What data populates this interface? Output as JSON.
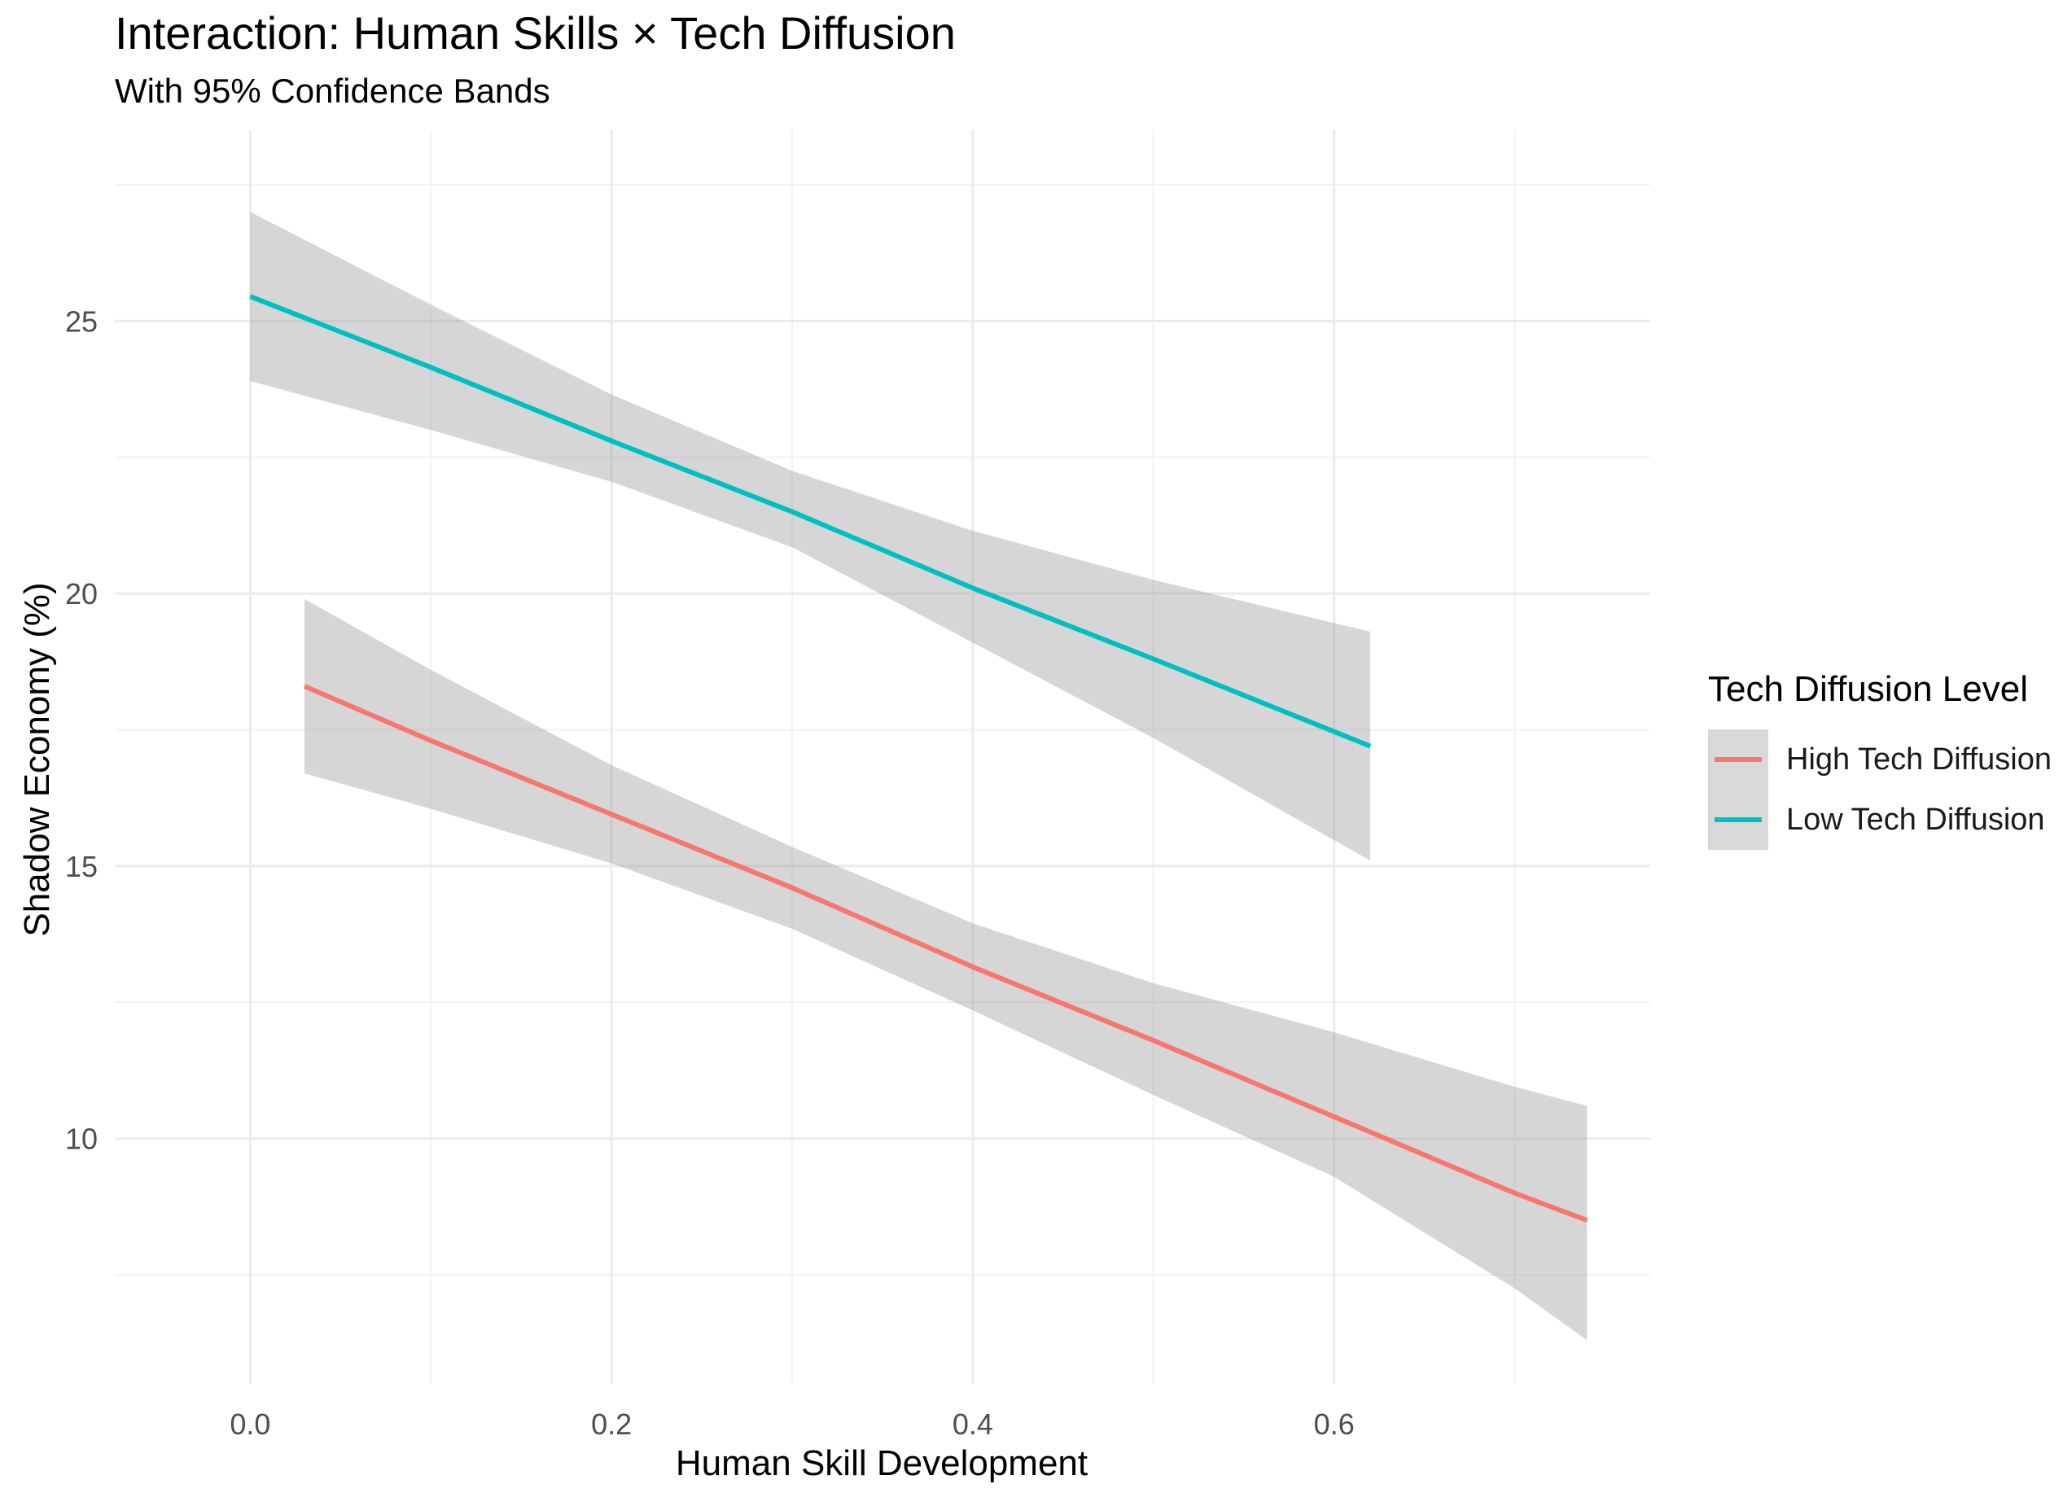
{
  "chart_data": {
    "type": "line",
    "title": "Interaction: Human Skills × Tech Diffusion",
    "subtitle": "With 95% Confidence Bands",
    "xlabel": "Human Skill Development",
    "ylabel": "Shadow Economy (%)",
    "xlim": [
      -0.075,
      0.775
    ],
    "ylim": [
      5.5,
      28.5
    ],
    "x_ticks": [
      0.0,
      0.2,
      0.4,
      0.6
    ],
    "x_tick_labels": [
      "0.0",
      "0.2",
      "0.4",
      "0.6"
    ],
    "y_ticks": [
      10,
      15,
      20,
      25
    ],
    "y_tick_labels": [
      "10",
      "15",
      "20",
      "25"
    ],
    "grid": true,
    "legend_title": "Tech Diffusion Level",
    "legend_position": "right",
    "series": [
      {
        "name": "High Tech Diffusion",
        "color": "#F8766D",
        "x": [
          0.03,
          0.1,
          0.2,
          0.3,
          0.4,
          0.5,
          0.6,
          0.7,
          0.74
        ],
        "y": [
          18.3,
          17.3,
          15.95,
          14.6,
          13.15,
          11.8,
          10.4,
          9.0,
          8.5
        ],
        "lower": [
          16.7,
          16.05,
          15.05,
          13.85,
          12.35,
          10.8,
          9.3,
          7.25,
          6.3
        ],
        "upper": [
          19.9,
          18.6,
          16.85,
          15.35,
          13.95,
          12.85,
          11.95,
          10.95,
          10.6
        ]
      },
      {
        "name": "Low Tech Diffusion",
        "color": "#00BFC4",
        "x": [
          0.0,
          0.1,
          0.2,
          0.3,
          0.4,
          0.5,
          0.62
        ],
        "y": [
          25.45,
          24.15,
          22.8,
          21.5,
          20.1,
          18.8,
          17.2
        ],
        "lower": [
          23.9,
          23.0,
          22.05,
          20.85,
          19.1,
          17.35,
          15.1
        ],
        "upper": [
          27.0,
          25.3,
          23.65,
          22.25,
          21.15,
          20.25,
          19.3
        ]
      }
    ]
  }
}
